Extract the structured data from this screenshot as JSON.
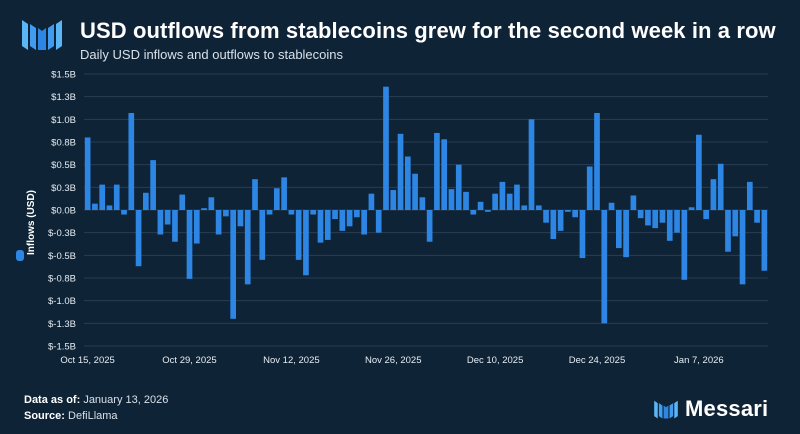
{
  "header": {
    "title": "USD outflows from stablecoins grew for the second week in a row",
    "subtitle": "Daily USD inflows and outflows to stablecoins"
  },
  "footer": {
    "data_as_of_label": "Data as of:",
    "data_as_of_value": "January 13, 2026",
    "source_label": "Source:",
    "source_value": "DefiLlama"
  },
  "brand": {
    "name": "Messari"
  },
  "colors": {
    "background": "#0f2336",
    "bar": "#2d86e3",
    "grid": "#2a3d52",
    "text": "#ffffff"
  },
  "chart_data": {
    "type": "bar",
    "title": "USD outflows from stablecoins grew for the second week in a row",
    "ylabel": "Inflows (USD)",
    "ylim": [
      -1.5,
      1.5
    ],
    "y_unit": "billion USD",
    "y_ticks": [
      "$1.5B",
      "$1.3B",
      "$1.0B",
      "$0.8B",
      "$0.5B",
      "$0.3B",
      "$0.0B",
      "$-0.3B",
      "$-0.5B",
      "$-0.8B",
      "$-1.0B",
      "$-1.3B",
      "$-1.5B"
    ],
    "x_tick_labels": [
      "Oct 15, 2025",
      "Oct 29, 2025",
      "Nov 12, 2025",
      "Nov 26, 2025",
      "Dec 10, 2025",
      "Dec 24, 2025",
      "Jan 7, 2026"
    ],
    "legend": "left-of-y-axis",
    "grid": true,
    "series": [
      {
        "name": "Inflows (USD)",
        "start_date": "2025-10-15",
        "values": [
          0.8,
          0.07,
          0.28,
          0.05,
          0.28,
          -0.05,
          1.07,
          -0.62,
          0.19,
          0.55,
          -0.27,
          -0.16,
          -0.35,
          0.17,
          -0.76,
          -0.37,
          0.02,
          0.14,
          -0.27,
          -0.07,
          -1.2,
          -0.18,
          -0.82,
          0.34,
          -0.55,
          -0.05,
          0.24,
          0.36,
          -0.05,
          -0.55,
          -0.72,
          -0.05,
          -0.36,
          -0.33,
          -0.1,
          -0.23,
          -0.18,
          -0.08,
          -0.27,
          0.18,
          -0.25,
          1.36,
          0.22,
          0.84,
          0.59,
          0.4,
          0.14,
          -0.35,
          0.85,
          0.78,
          0.23,
          0.5,
          0.2,
          -0.05,
          0.09,
          -0.02,
          0.18,
          0.31,
          0.18,
          0.28,
          0.05,
          1.0,
          0.05,
          -0.14,
          -0.32,
          -0.23,
          -0.02,
          -0.08,
          -0.53,
          0.48,
          1.07,
          -1.25,
          0.08,
          -0.42,
          -0.52,
          0.16,
          -0.09,
          -0.17,
          -0.2,
          -0.14,
          -0.34,
          -0.25,
          -0.77,
          0.03,
          0.83,
          -0.1,
          0.34,
          0.51,
          -0.46,
          -0.29,
          -0.82,
          0.31,
          -0.14,
          -0.67
        ]
      }
    ]
  }
}
